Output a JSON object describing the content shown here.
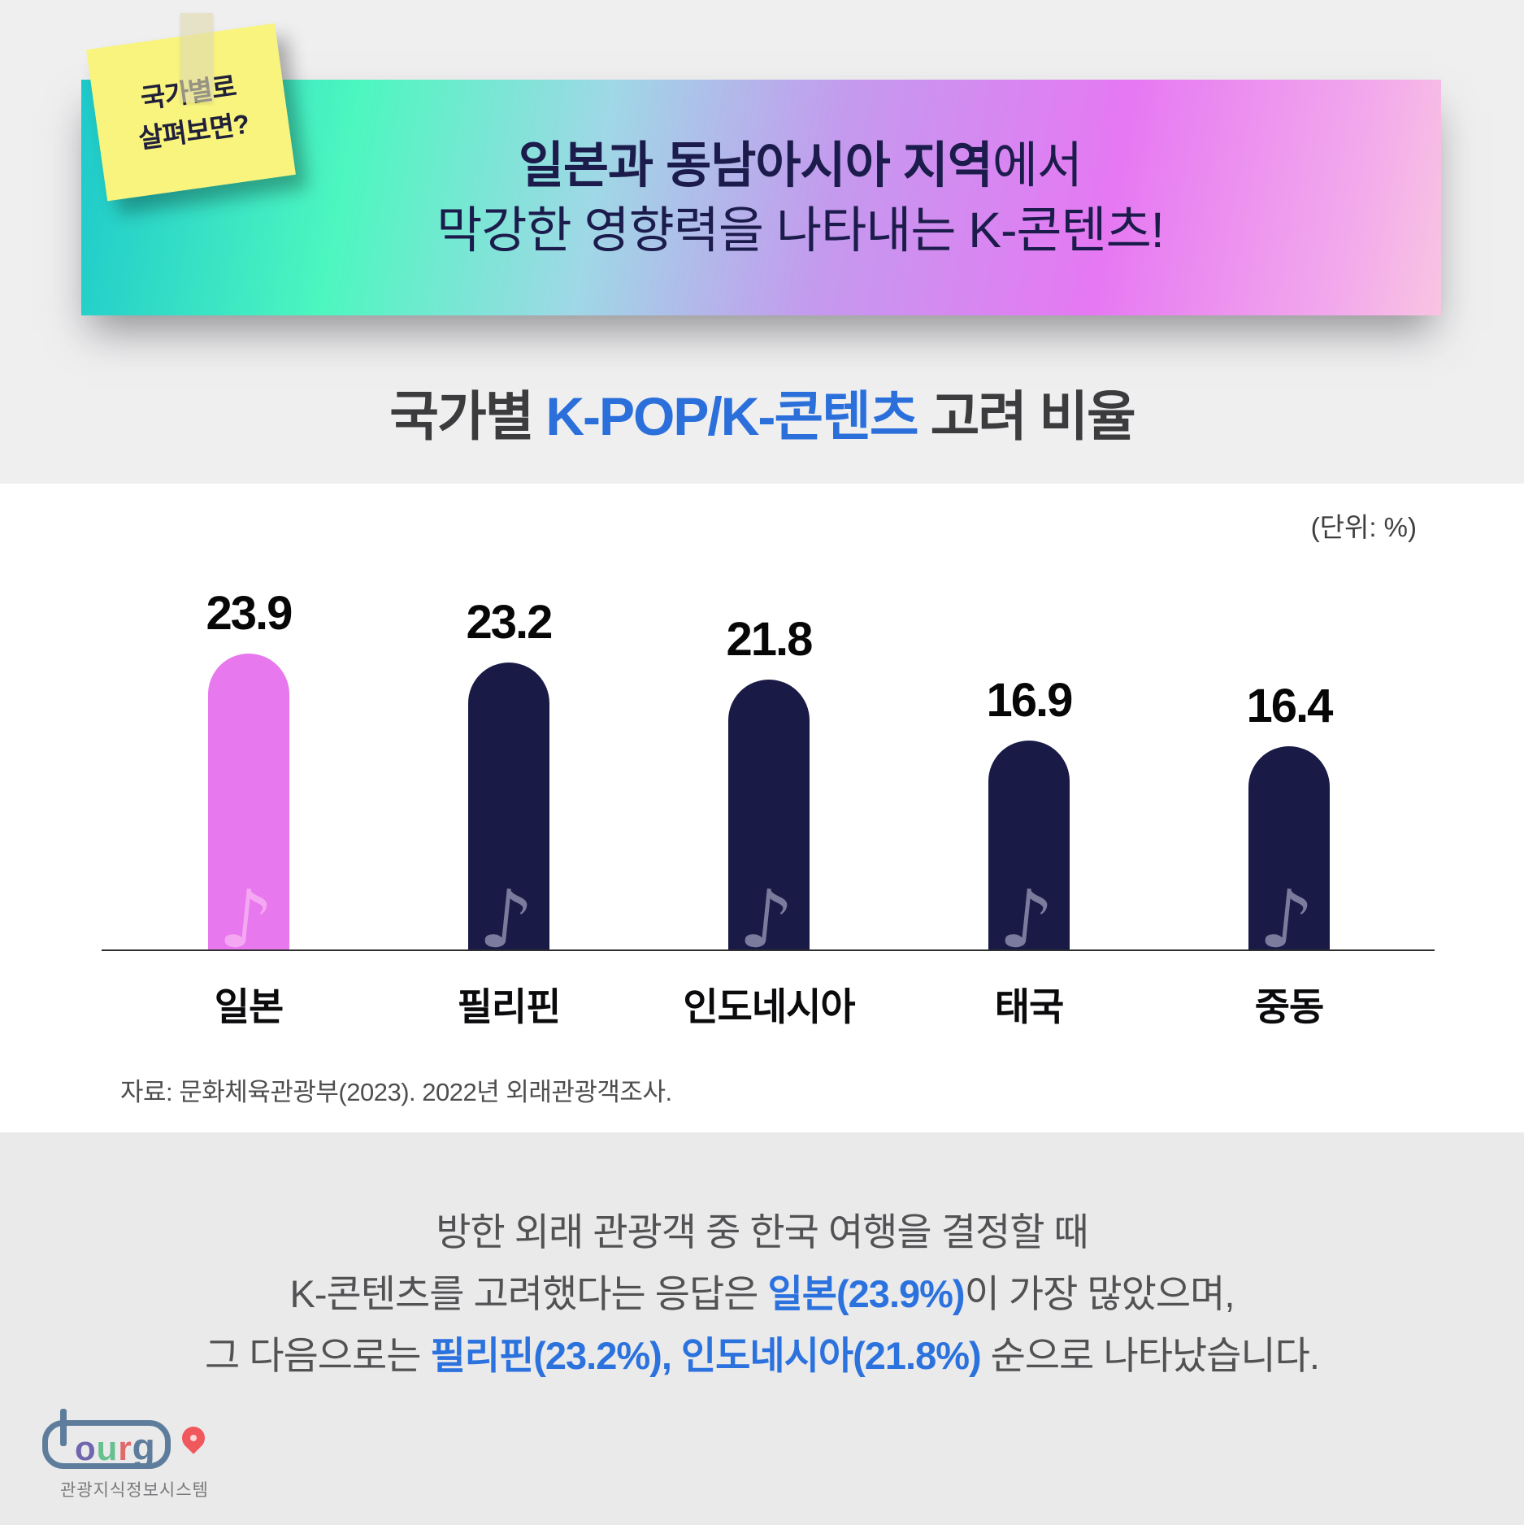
{
  "sticky_note": {
    "line1": "국가별로",
    "line2": "살펴보면?"
  },
  "banner": {
    "line1_bold": "일본과 동남아시아 지역",
    "line1_regular": "에서",
    "line2": "막강한 영향력을 나타내는 K-콘텐츠!"
  },
  "title": {
    "prefix": "국가별",
    "highlight": "K-POP/K-콘텐츠",
    "suffix": "고려 비율"
  },
  "unit_label": "(단위:  %)",
  "chart_data": {
    "type": "bar",
    "title": "국가별 K-POP/K-콘텐츠 고려 비율",
    "unit": "%",
    "categories": [
      "일본",
      "필리핀",
      "인도네시아",
      "태국",
      "중동"
    ],
    "values": [
      23.9,
      23.2,
      21.8,
      16.9,
      16.4
    ],
    "bar_colors": [
      "#e878ee",
      "#1a1a47",
      "#1a1a47",
      "#1a1a47",
      "#1a1a47"
    ],
    "note_colors": [
      "#f4a8f2",
      "#7b7b9d",
      "#7b7b9d",
      "#7b7b9d",
      "#7b7b9d"
    ],
    "highlight_category": "일본",
    "ylim": [
      0,
      25
    ],
    "grid": false,
    "legend": false,
    "value_labels_shown": true,
    "note_icon": "♪"
  },
  "source": "자료: 문화체육관광부(2023). 2022년 외래관광객조사.",
  "summary": {
    "line1": "방한 외래 관광객 중 한국 여행을 결정할 때",
    "line2_pre": "K-콘텐츠를 고려했다는 응답은",
    "line2_highlight": "일본(23.9%)",
    "line2_post": "이 가장 많았으며,",
    "line3_pre": "그 다음으로는",
    "line3_highlight1": "필리핀(23.2%),",
    "line3_highlight2": "인도네시아(21.8%)",
    "line3_post": "순으로 나타났습니다."
  },
  "logo": {
    "letters": {
      "o": "o",
      "u": "u",
      "r": "r",
      "g": "g"
    },
    "caption": "관광지식정보시스템"
  },
  "colors": {
    "banner_text": "#1c1c4c",
    "title_highlight_blue": "#2b6fdb",
    "summary_blue": "#2b72de",
    "bar_pink": "#e878ee",
    "bar_navy": "#1a1a47",
    "bottom_bg": "#eaeaeb",
    "top_bg": "#efeff0"
  }
}
